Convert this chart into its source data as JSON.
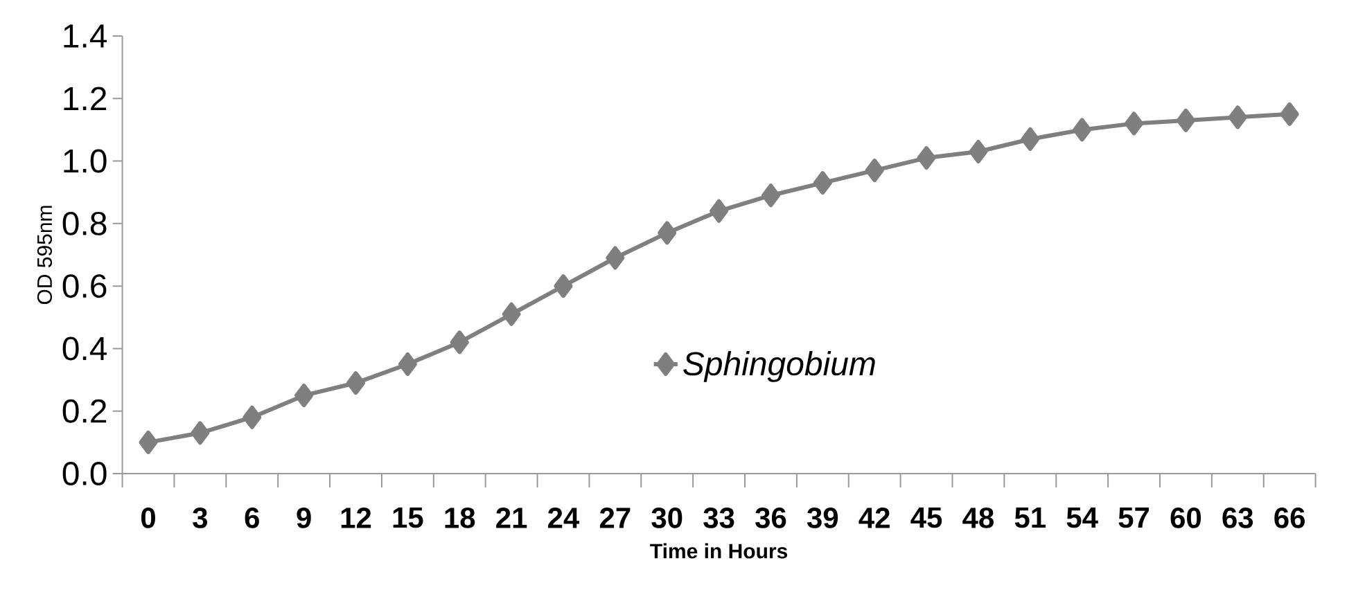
{
  "chart_data": {
    "type": "line",
    "xlabel": "Time in Hours",
    "ylabel": "OD 595nm",
    "categories": [
      "0",
      "3",
      "6",
      "9",
      "12",
      "15",
      "18",
      "21",
      "24",
      "27",
      "30",
      "33",
      "36",
      "39",
      "42",
      "45",
      "48",
      "51",
      "54",
      "57",
      "60",
      "63",
      "66"
    ],
    "series": [
      {
        "name": "Sphingobium",
        "color": "#7f7f7f",
        "values": [
          0.1,
          0.13,
          0.18,
          0.25,
          0.29,
          0.35,
          0.42,
          0.51,
          0.6,
          0.69,
          0.77,
          0.84,
          0.89,
          0.93,
          0.97,
          1.01,
          1.03,
          1.07,
          1.1,
          1.12,
          1.13,
          1.14,
          1.15
        ]
      }
    ],
    "ylim": [
      0,
      1.4
    ],
    "yticks": [
      {
        "value": 0,
        "label": "0.0"
      },
      0.2,
      0.4,
      0.6,
      0.8,
      {
        "value": 1,
        "label": "1.0"
      },
      1.2,
      1.4
    ],
    "grid": false,
    "legend": "bottom right",
    "marker": "diamond",
    "line_style": "solid"
  }
}
